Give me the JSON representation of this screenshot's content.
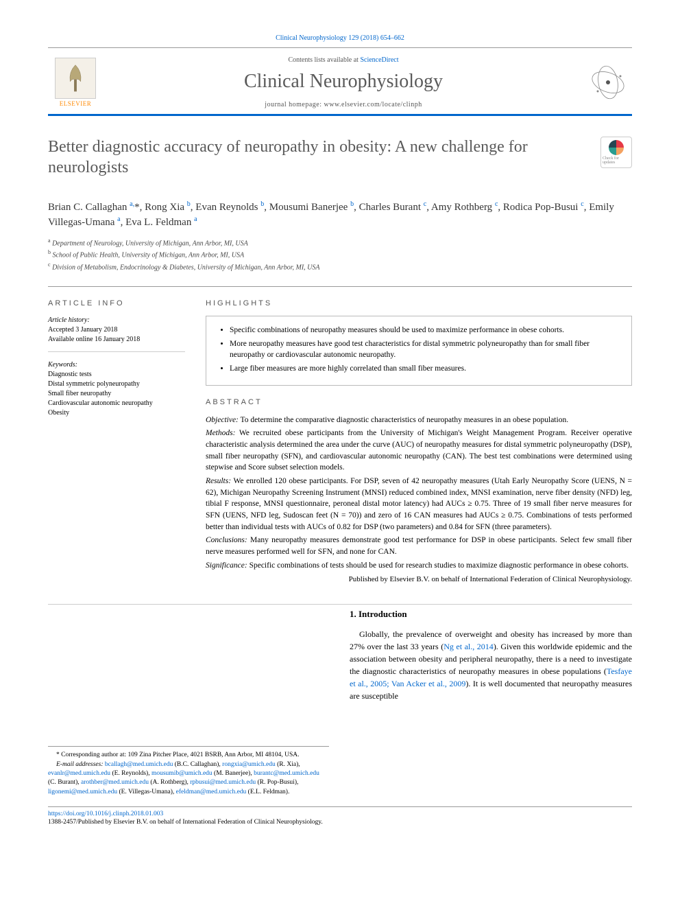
{
  "journal_ref": "Clinical Neurophysiology 129 (2018) 654–662",
  "header": {
    "contents_text": "Contents lists available at ",
    "contents_link": "ScienceDirect",
    "journal_name": "Clinical Neurophysiology",
    "homepage_label": "journal homepage: ",
    "homepage_url": "www.elsevier.com/locate/clinph",
    "publisher": "ELSEVIER"
  },
  "crossmark_label": "Check for updates",
  "article": {
    "title": "Better diagnostic accuracy of neuropathy in obesity: A new challenge for neurologists",
    "authors_html": "Brian C. Callaghan <sup>a,</sup>*, Rong Xia <sup>b</sup>, Evan Reynolds <sup>b</sup>, Mousumi Banerjee <sup>b</sup>, Charles Burant <sup>c</sup>, Amy Rothberg <sup>c</sup>, Rodica Pop-Busui <sup>c</sup>, Emily Villegas-Umana <sup>a</sup>, Eva L. Feldman <sup>a</sup>",
    "affiliations": [
      {
        "sup": "a",
        "text": "Department of Neurology, University of Michigan, Ann Arbor, MI, USA"
      },
      {
        "sup": "b",
        "text": "School of Public Health, University of Michigan, Ann Arbor, MI, USA"
      },
      {
        "sup": "c",
        "text": "Division of Metabolism, Endocrinology & Diabetes, University of Michigan, Ann Arbor, MI, USA"
      }
    ]
  },
  "info": {
    "heading": "article info",
    "history_label": "Article history:",
    "history": [
      "Accepted 3 January 2018",
      "Available online 16 January 2018"
    ],
    "keywords_label": "Keywords:",
    "keywords": [
      "Diagnostic tests",
      "Distal symmetric polyneuropathy",
      "Small fiber neuropathy",
      "Cardiovascular autonomic neuropathy",
      "Obesity"
    ]
  },
  "highlights": {
    "heading": "highlights",
    "items": [
      "Specific combinations of neuropathy measures should be used to maximize performance in obese cohorts.",
      "More neuropathy measures have good test characteristics for distal symmetric polyneuropathy than for small fiber neuropathy or cardiovascular autonomic neuropathy.",
      "Large fiber measures are more highly correlated than small fiber measures."
    ]
  },
  "abstract": {
    "heading": "abstract",
    "sections": [
      {
        "label": "Objective:",
        "text": "To determine the comparative diagnostic characteristics of neuropathy measures in an obese population."
      },
      {
        "label": "Methods:",
        "text": "We recruited obese participants from the University of Michigan's Weight Management Program. Receiver operative characteristic analysis determined the area under the curve (AUC) of neuropathy measures for distal symmetric polyneuropathy (DSP), small fiber neuropathy (SFN), and cardiovascular autonomic neuropathy (CAN). The best test combinations were determined using stepwise and Score subset selection models."
      },
      {
        "label": "Results:",
        "text": "We enrolled 120 obese participants. For DSP, seven of 42 neuropathy measures (Utah Early Neuropathy Score (UENS, N = 62), Michigan Neuropathy Screening Instrument (MNSI) reduced combined index, MNSI examination, nerve fiber density (NFD) leg, tibial F response, MNSI questionnaire, peroneal distal motor latency) had AUCs ≥ 0.75. Three of 19 small fiber nerve measures for SFN (UENS, NFD leg, Sudoscan feet (N = 70)) and zero of 16 CAN measures had AUCs ≥ 0.75. Combinations of tests performed better than individual tests with AUCs of 0.82 for DSP (two parameters) and 0.84 for SFN (three parameters)."
      },
      {
        "label": "Conclusions:",
        "text": "Many neuropathy measures demonstrate good test performance for DSP in obese participants. Select few small fiber nerve measures performed well for SFN, and none for CAN."
      },
      {
        "label": "Significance:",
        "text": "Specific combinations of tests should be used for research studies to maximize diagnostic performance in obese cohorts."
      }
    ],
    "publisher_note": "Published by Elsevier B.V. on behalf of International Federation of Clinical Neurophysiology."
  },
  "introduction": {
    "heading": "1. Introduction",
    "text_parts": [
      "Globally, the prevalence of overweight and obesity has increased by more than 27% over the last 33 years (",
      "Ng et al., 2014",
      "). Given this worldwide epidemic and the association between obesity and peripheral neuropathy, there is a need to investigate the diagnostic characteristics of neuropathy measures in obese populations (",
      "Tesfaye et al., 2005; Van Acker et al., 2009",
      "). It is well documented that neuropathy measures are susceptible"
    ]
  },
  "footnotes": {
    "corresponding": "* Corresponding author at: 109 Zina Pitcher Place, 4021 BSRB, Ann Arbor, MI 48104, USA.",
    "email_label": "E-mail addresses:",
    "emails": [
      {
        "addr": "bcallagh@med.umich.edu",
        "name": "(B.C. Callaghan)"
      },
      {
        "addr": "rongxia@umich.edu",
        "name": "(R. Xia)"
      },
      {
        "addr": "evanlr@med.umich.edu",
        "name": "(E. Reynolds)"
      },
      {
        "addr": "mousumib@umich.edu",
        "name": "(M. Banerjee)"
      },
      {
        "addr": "burantc@med.umich.edu",
        "name": "(C. Burant)"
      },
      {
        "addr": "arothber@med.umich.edu",
        "name": "(A. Rothberg)"
      },
      {
        "addr": "rpbusui@med.umich.edu",
        "name": "(R. Pop-Busui)"
      },
      {
        "addr": "ligonemi@med.umich.edu",
        "name": "(E. Villegas-Umana)"
      },
      {
        "addr": "efeldman@med.umich.edu",
        "name": "(E.L. Feldman)"
      }
    ]
  },
  "footer": {
    "doi": "https://doi.org/10.1016/j.clinph.2018.01.003",
    "issn_line": "1388-2457/Published by Elsevier B.V. on behalf of International Federation of Clinical Neurophysiology."
  },
  "colors": {
    "link": "#0066cc",
    "accent_border": "#0066cc",
    "elsevier_orange": "#ff8800",
    "heading_gray": "#5a5a5a"
  }
}
